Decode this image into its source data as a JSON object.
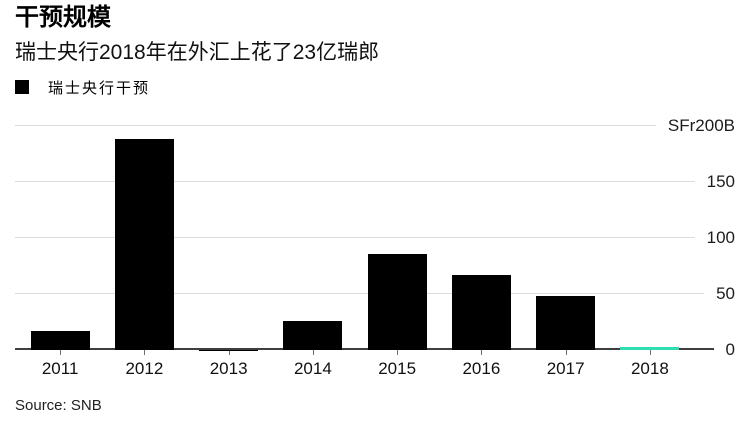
{
  "header": {
    "title": "干预规模",
    "subtitle": "瑞士央行2018年在外汇上花了23亿瑞郎"
  },
  "legend": {
    "items": [
      {
        "label": "瑞士央行干预",
        "color": "#000000"
      }
    ]
  },
  "source": "Source: SNB",
  "colors": {
    "bar": "#000000",
    "highlight": "#2fdfb2",
    "gridline": "#dcdcdc",
    "axis_line": "#3f3f3f",
    "tick": "#6e6e6e",
    "label_text": "#1c1c1c"
  },
  "chart_data": {
    "type": "bar",
    "title": "干预规模",
    "subtitle": "瑞士央行2018年在外汇上花了23亿瑞郎",
    "categories": [
      "2011",
      "2012",
      "2013",
      "2014",
      "2015",
      "2016",
      "2017",
      "2018"
    ],
    "series": [
      {
        "name": "瑞士央行干预",
        "values": [
          17,
          188,
          0.2,
          26,
          86,
          67,
          48,
          2.3
        ]
      }
    ],
    "bar_colors": [
      "#000000",
      "#000000",
      "#000000",
      "#000000",
      "#000000",
      "#000000",
      "#000000",
      "#2fdfb2"
    ],
    "unit": "SFr billions",
    "ylim": [
      0,
      200
    ],
    "yticks": [
      {
        "value": 200,
        "label": "SFr200B"
      },
      {
        "value": 150,
        "label": "150"
      },
      {
        "value": 100,
        "label": "100"
      },
      {
        "value": 50,
        "label": "50"
      },
      {
        "value": 0,
        "label": "0"
      }
    ],
    "grid": true,
    "ytick_side": "right",
    "legend_position": "top-left",
    "source": "Source: SNB"
  }
}
